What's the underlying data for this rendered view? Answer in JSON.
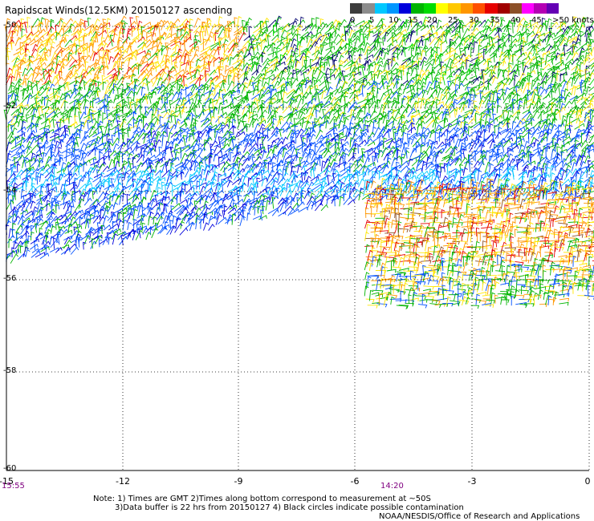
{
  "title": "Rapidscat Winds(12.5KM) 20150127 ascending",
  "legend": {
    "labels": [
      "0",
      "5",
      "10",
      "15",
      "20",
      "25",
      "30",
      "35",
      "40",
      "45",
      ">50 knots"
    ],
    "colors": [
      "#3c3c3c",
      "#8c8c8c",
      "#00c8ff",
      "#0096ff",
      "#0000dc",
      "#00b400",
      "#00dc00",
      "#ffff00",
      "#ffc800",
      "#ff9600",
      "#ff5000",
      "#e60000",
      "#a00000",
      "#8c5028",
      "#ff00ff",
      "#b400b4",
      "#6400b4"
    ]
  },
  "axes": {
    "lat_labels": [
      "-50",
      "-52",
      "-54",
      "-56",
      "-58",
      "-60"
    ],
    "lon_labels": [
      "-15",
      "-12",
      "-9",
      "-6",
      "-3",
      "0"
    ],
    "lat_range": [
      -60,
      -50
    ],
    "lon_range": [
      -15,
      0
    ],
    "grid": "dotted"
  },
  "times": {
    "start": "15:55",
    "end": "14:20"
  },
  "notes": {
    "line1": "Note: 1) Times are GMT 2)Times along bottom correspond to measurement at ~50S",
    "line2": "3)Data buffer is 22 hrs from 20150127 4) Black circles indicate possible contamination",
    "credit": "NOAA/NESDIS/Office of Research and Applications"
  }
}
